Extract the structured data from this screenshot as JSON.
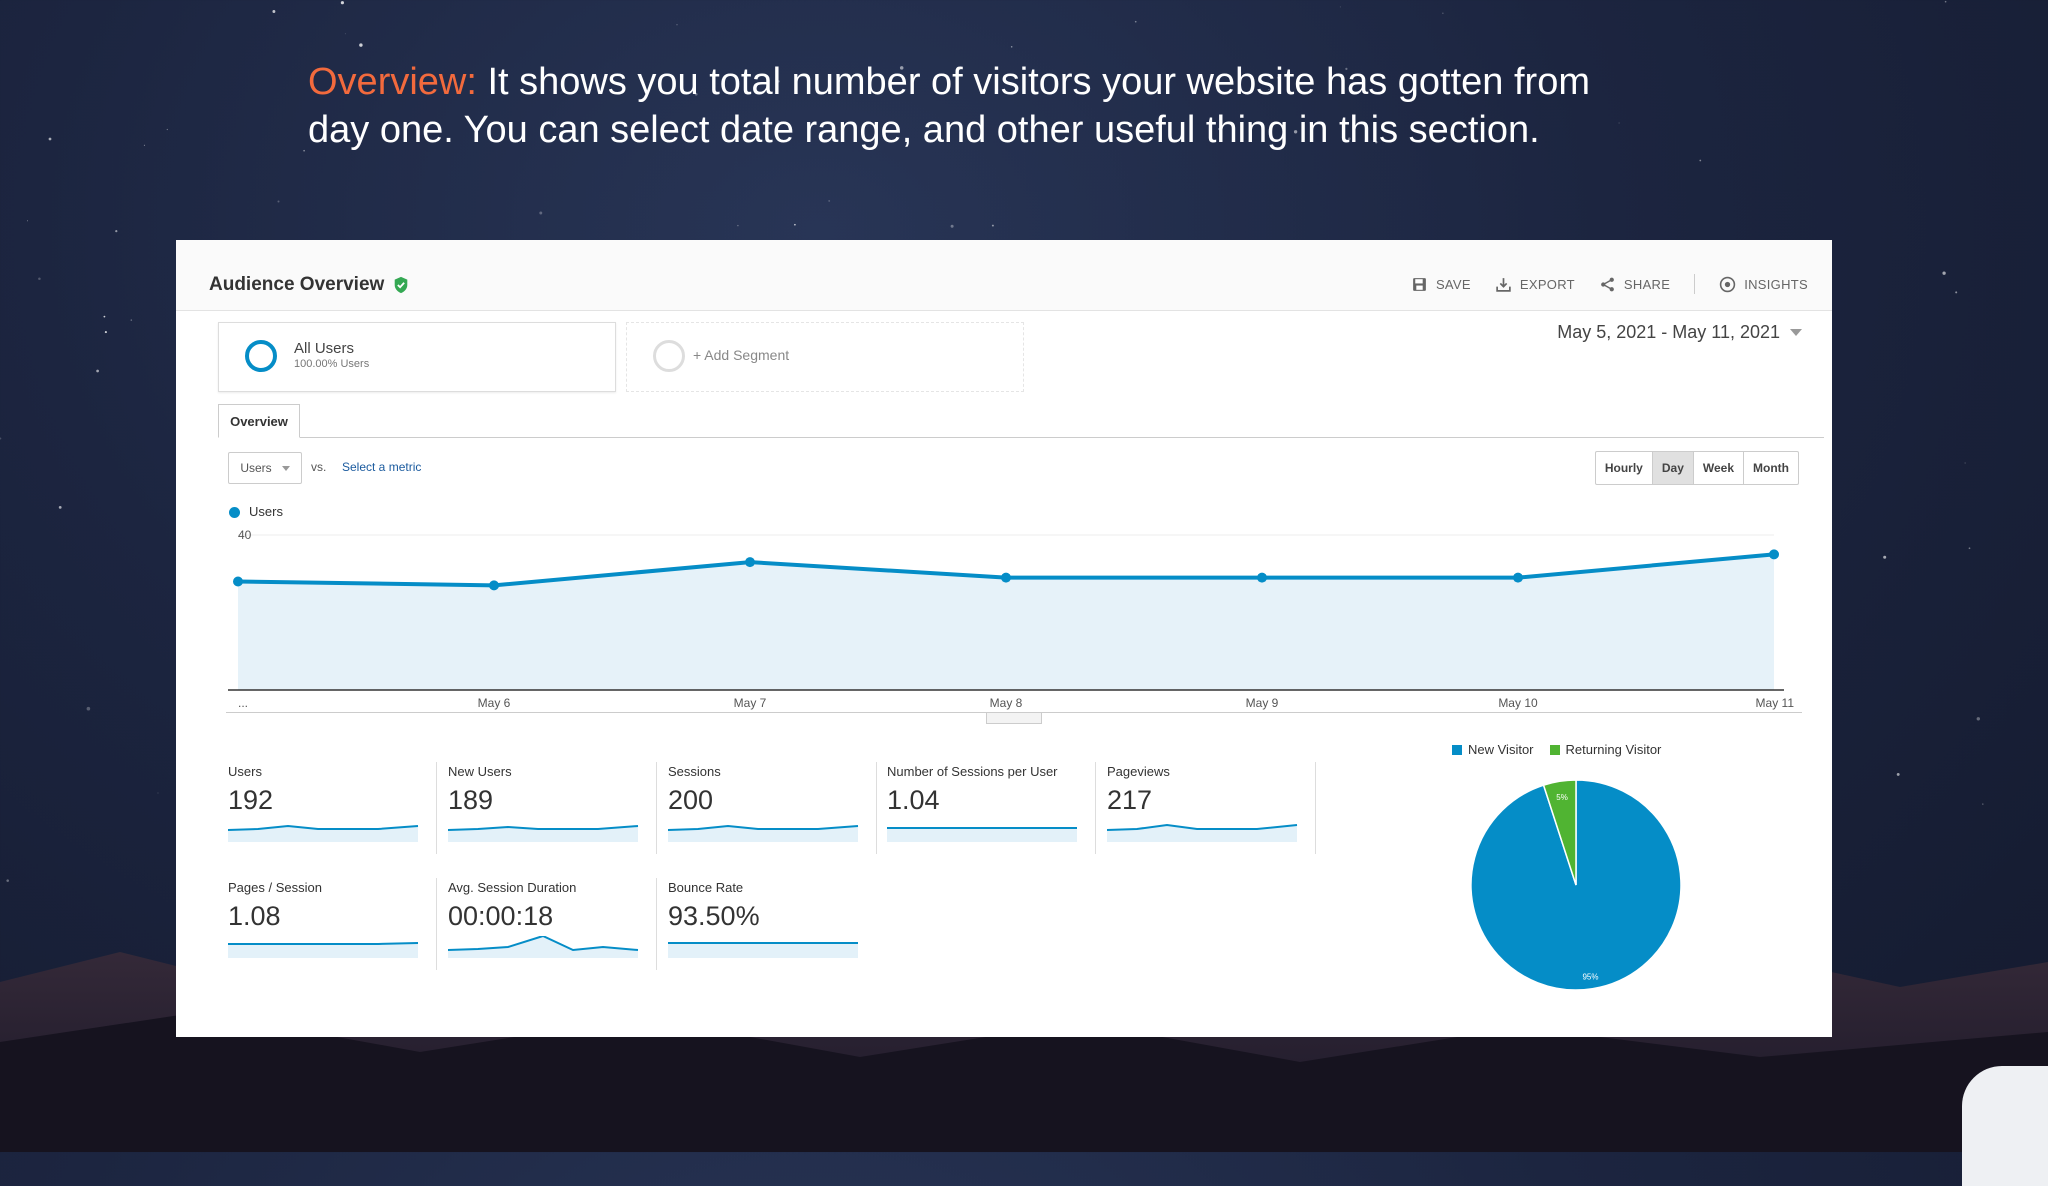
{
  "slide": {
    "heading_accent": "Overview:",
    "heading_text": " It shows you total number of visitors your website has gotten from day one. You can select date range, and other useful thing in this section."
  },
  "header": {
    "title": "Audience Overview",
    "actions": [
      {
        "label": "SAVE",
        "icon": "save-icon"
      },
      {
        "label": "EXPORT",
        "icon": "export-icon"
      },
      {
        "label": "SHARE",
        "icon": "share-icon"
      },
      {
        "label": "INSIGHTS",
        "icon": "insights-icon"
      }
    ]
  },
  "segments": {
    "primary": {
      "name": "All Users",
      "sub": "100.00% Users"
    },
    "add_label": "+ Add Segment"
  },
  "date_range": "May 5, 2021 - May 11, 2021",
  "tab": "Overview",
  "metric": {
    "selected": "Users",
    "vs": "vs.",
    "select_label": "Select a metric"
  },
  "period_buttons": [
    {
      "label": "Hourly",
      "active": false
    },
    {
      "label": "Day",
      "active": true
    },
    {
      "label": "Week",
      "active": false
    },
    {
      "label": "Month",
      "active": false
    }
  ],
  "chart_data": {
    "type": "area",
    "series": [
      {
        "name": "Users",
        "values": [
          28,
          27,
          33,
          29,
          29,
          29,
          35
        ]
      }
    ],
    "categories": [
      "...",
      "May 6",
      "May 7",
      "May 8",
      "May 9",
      "May 10",
      "May 11"
    ],
    "yticks": [
      "40",
      "20"
    ],
    "ylim": [
      0,
      40
    ],
    "color": "#058dc7"
  },
  "kpis": [
    {
      "label": "Users",
      "value": "192"
    },
    {
      "label": "New Users",
      "value": "189"
    },
    {
      "label": "Sessions",
      "value": "200"
    },
    {
      "label": "Number of Sessions per User",
      "value": "1.04"
    },
    {
      "label": "Pageviews",
      "value": "217"
    },
    {
      "label": "Pages / Session",
      "value": "1.08"
    },
    {
      "label": "Avg. Session Duration",
      "value": "00:00:18"
    },
    {
      "label": "Bounce Rate",
      "value": "93.50%"
    }
  ],
  "pie": {
    "legend": [
      {
        "name": "New Visitor",
        "color": "#058dc7"
      },
      {
        "name": "Returning Visitor",
        "color": "#50b432"
      }
    ],
    "slices": [
      {
        "name": "New Visitor",
        "value": 95,
        "label": "95%"
      },
      {
        "name": "Returning Visitor",
        "value": 5,
        "label": "5%"
      }
    ]
  }
}
